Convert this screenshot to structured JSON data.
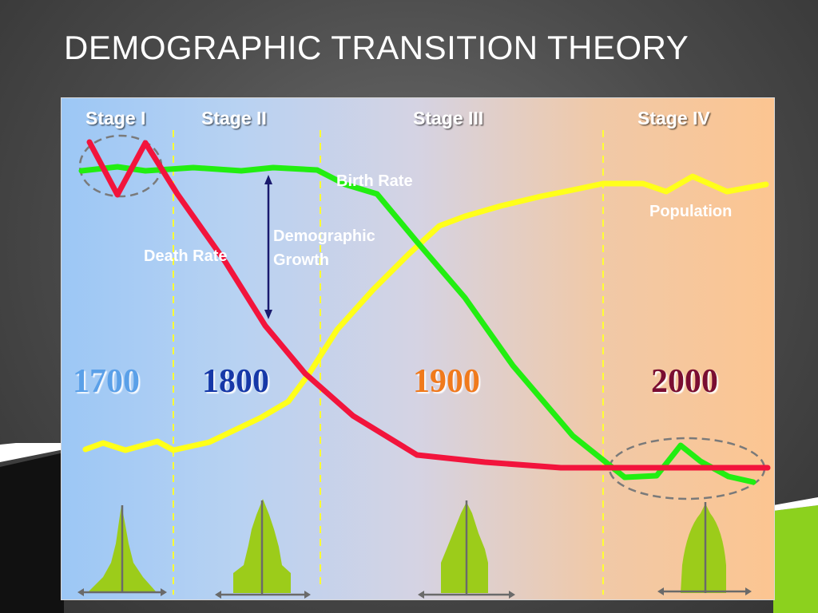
{
  "slide": {
    "title": "DEMOGRAPHIC TRANSITION THEORY"
  },
  "stages": [
    "Stage I",
    "Stage II",
    "Stage III",
    "Stage IV"
  ],
  "years": [
    {
      "label": "1700",
      "color": "#5aa0e8"
    },
    {
      "label": "1800",
      "color": "#1438a8"
    },
    {
      "label": "1900",
      "color": "#f07a1a"
    },
    {
      "label": "2000",
      "color": "#7a1030"
    }
  ],
  "labels": {
    "birth_rate": "Birth Rate",
    "death_rate": "Death Rate",
    "population": "Population",
    "demographic_growth_1": "Demographic",
    "demographic_growth_2": "Growth"
  },
  "colors": {
    "birth_rate": "#22ee11",
    "death_rate": "#f2143c",
    "population": "#ffff1a",
    "pyramid": "#9ccc1a",
    "arrow": "#1a1a6e"
  },
  "icons": [
    "pyramid-icon",
    "double-arrow-icon"
  ]
}
